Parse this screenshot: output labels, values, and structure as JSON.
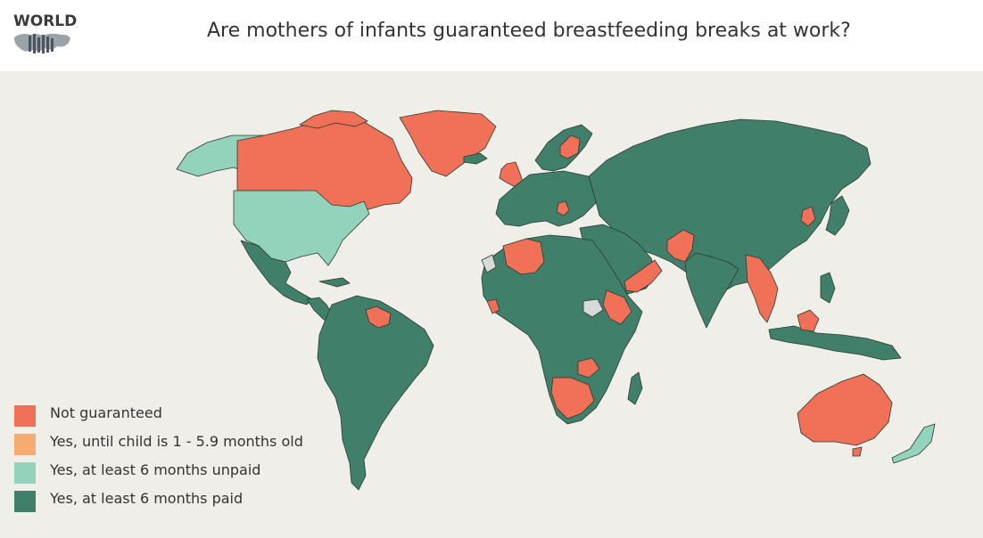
{
  "header": {
    "logo_text": "WORLD",
    "title": "Are mothers of infants guaranteed breastfeeding breaks at work?"
  },
  "legend": {
    "items": [
      {
        "label": "Not guaranteed",
        "color": "#f07157"
      },
      {
        "label": "Yes, until child is 1 - 5.9 months old",
        "color": "#f6ab70"
      },
      {
        "label": "Yes, at least 6 months unpaid",
        "color": "#93d3bb"
      },
      {
        "label": "Yes, at least 6 months paid",
        "color": "#40806b"
      }
    ]
  },
  "colors": {
    "not_guaranteed": "#f07157",
    "until_1_5_9_months": "#f6ab70",
    "six_months_unpaid": "#93d3bb",
    "six_months_paid": "#40806b",
    "no_data": "#d9d9d9",
    "ocean": "#efeee8"
  }
}
